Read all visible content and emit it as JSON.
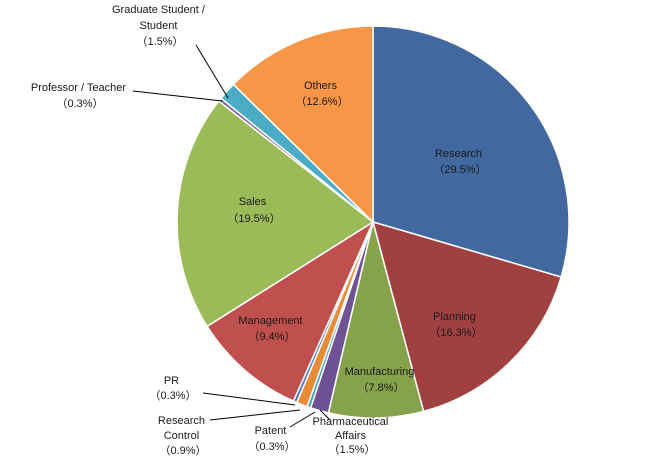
{
  "chart_data": {
    "type": "pie",
    "title": "",
    "start_angle_deg": 0,
    "direction": "clockwise",
    "slices": [
      {
        "name": "Research",
        "value": 29.5,
        "pct_label": "（29.5%）",
        "color": "#4169A0"
      },
      {
        "name": "Planning",
        "value": 16.3,
        "pct_label": "（16.3%）",
        "color": "#A04040"
      },
      {
        "name": "Manufacturing",
        "value": 7.8,
        "pct_label": "（7.8%）",
        "color": "#86A24A"
      },
      {
        "name": "Pharmaceutical Affairs",
        "value": 1.5,
        "pct_label": "（1.5%）",
        "color": "#6E5294"
      },
      {
        "name": "Patent",
        "value": 0.3,
        "pct_label": "（0.3%）",
        "color": "#3FA5C5"
      },
      {
        "name": "Research Control",
        "value": 0.9,
        "pct_label": "（0.9%）",
        "color": "#E88B38"
      },
      {
        "name": "PR",
        "value": 0.3,
        "pct_label": "（0.3%）",
        "color": "#4E7BB5"
      },
      {
        "name": "Management",
        "value": 9.4,
        "pct_label": "（9.4%）",
        "color": "#C0504D"
      },
      {
        "name": "Sales",
        "value": 19.5,
        "pct_label": "（19.5%）",
        "color": "#9BBB59"
      },
      {
        "name": "Professor / Teacher",
        "value": 0.3,
        "pct_label": "（0.3%）",
        "color": "#8064A2"
      },
      {
        "name": "Graduate Student / Student",
        "value": 1.5,
        "pct_label": "（1.5%）",
        "color": "#4BACC6"
      },
      {
        "name": "Others",
        "value": 12.6,
        "pct_label": "（12.6%）",
        "color": "#F79646"
      }
    ]
  },
  "labels": {
    "research": [
      "Research",
      "（29.5%）"
    ],
    "planning": [
      "Planning",
      "（16.3%）"
    ],
    "manufacturing": [
      "Manufacturing",
      "（7.8%）"
    ],
    "pharma": [
      "Pharmaceutical",
      "Affairs",
      "（1.5%）"
    ],
    "patent": [
      "Patent",
      "（0.3%）"
    ],
    "research_control": [
      "Research",
      "Control",
      "（0.9%）"
    ],
    "pr": [
      "PR",
      "（0.3%）"
    ],
    "management": [
      "Management",
      "（9.4%）"
    ],
    "sales": [
      "Sales",
      "（19.5%）"
    ],
    "professor": [
      "Professor / Teacher",
      "（0.3%）"
    ],
    "grad": [
      "Graduate Student /",
      "Student",
      "（1.5%）"
    ],
    "others": [
      "Others",
      "（12.6%）"
    ]
  }
}
